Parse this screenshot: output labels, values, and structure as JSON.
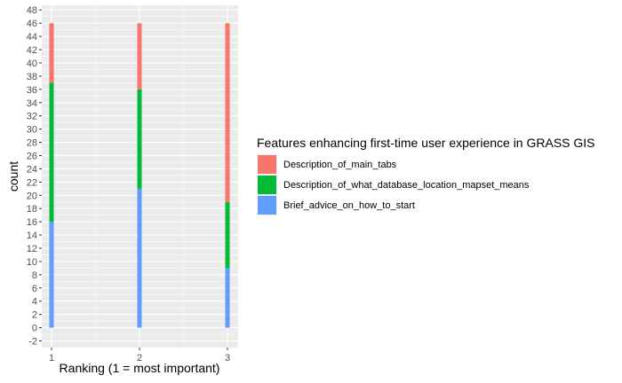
{
  "chart_data": {
    "type": "bar",
    "stacked": true,
    "categories": [
      "1",
      "2",
      "3"
    ],
    "xlabel": "Ranking (1 = most important)",
    "ylabel": "count",
    "ylim": [
      -2,
      48
    ],
    "yticks": [
      -2,
      0,
      2,
      4,
      6,
      8,
      10,
      12,
      14,
      16,
      18,
      20,
      22,
      24,
      26,
      28,
      30,
      32,
      34,
      36,
      38,
      40,
      42,
      44,
      46,
      48
    ],
    "grid": true,
    "legend": {
      "title": "Features enhancing first-time user experience in GRASS GIS",
      "placement": "right"
    },
    "series": [
      {
        "name": "Brief_advice_on_how_to_start",
        "color": "#619CFF",
        "values": [
          16,
          21,
          9
        ]
      },
      {
        "name": "Description_of_what_database_location_mapset_means",
        "color": "#00BA38",
        "values": [
          21,
          15,
          10
        ]
      },
      {
        "name": "Description_of_main_tabs",
        "color": "#F8766D",
        "values": [
          9,
          10,
          27
        ]
      }
    ],
    "legend_order": [
      "Description_of_main_tabs",
      "Description_of_what_database_location_mapset_means",
      "Brief_advice_on_how_to_start"
    ],
    "colors": {
      "panel": "#EBEBEB",
      "grid": "#FFFFFF",
      "tick": "#333333",
      "text": "#4D4D4D"
    }
  }
}
